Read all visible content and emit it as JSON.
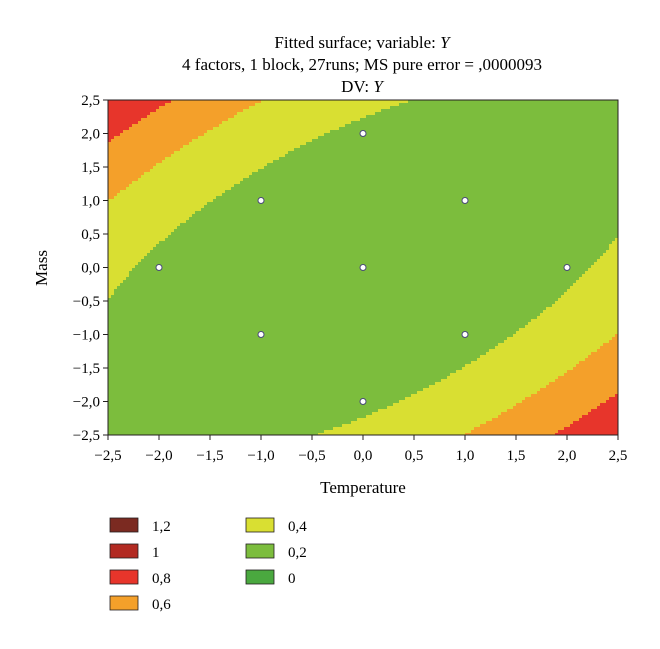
{
  "chart_data": {
    "type": "contour",
    "title_lines": [
      {
        "text": "Fitted surface; variable: ",
        "var": "Y"
      },
      {
        "text": "4 factors, 1 block, 27runs; MS pure error = ,0000093",
        "var": ""
      },
      {
        "text": "DV: ",
        "var": "Y"
      }
    ],
    "xlabel": "Temperature",
    "ylabel": "Mass",
    "xlim": [
      -2.5,
      2.5
    ],
    "ylim": [
      -2.5,
      2.5
    ],
    "x_ticks": [
      -2.5,
      -2.0,
      -1.5,
      -1.0,
      -0.5,
      0.0,
      0.5,
      1.0,
      1.5,
      2.0,
      2.5
    ],
    "x_tick_labels": [
      "−2,5",
      "−2,0",
      "−1,5",
      "−1,0",
      "−0,5",
      "0,0",
      "0,5",
      "1,0",
      "1,5",
      "2,0",
      "2,5"
    ],
    "y_ticks": [
      2.5,
      2.0,
      1.5,
      1.0,
      0.5,
      0.0,
      -0.5,
      -1.0,
      -1.5,
      -2.0,
      -2.5
    ],
    "y_tick_labels": [
      "2,5",
      "2,0",
      "1,5",
      "1,0",
      "0,5",
      "0,0",
      "−0,5",
      "−1,0",
      "−1,5",
      "−2,0",
      "−2,5"
    ],
    "surface_model": {
      "intercept": 0.11,
      "linear": 0.0,
      "quad_x": 0.038,
      "quad_y": 0.038,
      "interaction_xy": -0.047
    },
    "levels": [
      {
        "label": "1,2",
        "color": "#7b2a21",
        "min": 1.1
      },
      {
        "label": "1",
        "color": "#b22a22",
        "min": 0.9
      },
      {
        "label": "0,8",
        "color": "#e7352b",
        "min": 0.7
      },
      {
        "label": "0,6",
        "color": "#f4a02a",
        "min": 0.5
      },
      {
        "label": "0,4",
        "color": "#d9df32",
        "min": 0.3
      },
      {
        "label": "0,2",
        "color": "#7cbd3d",
        "min": 0.1
      },
      {
        "label": "0",
        "color": "#4aa83f",
        "min": 0.04
      },
      {
        "label": "",
        "color": "#2e8a3b",
        "min": -0.02
      },
      {
        "label": "",
        "color": "#26683a",
        "min": -10
      }
    ],
    "design_points": [
      {
        "x": 0,
        "y": 2
      },
      {
        "x": -1,
        "y": 1
      },
      {
        "x": 1,
        "y": 1
      },
      {
        "x": -2,
        "y": 0
      },
      {
        "x": 0,
        "y": 0
      },
      {
        "x": 2,
        "y": 0
      },
      {
        "x": -1,
        "y": -1
      },
      {
        "x": 1,
        "y": -1
      },
      {
        "x": 0,
        "y": -2
      }
    ],
    "legend_columns": [
      [
        "1,2",
        "1",
        "0,8",
        "0,6"
      ],
      [
        "0,4",
        "0,2",
        "0"
      ]
    ],
    "legend_placement": "bottom-left",
    "grid": false
  }
}
